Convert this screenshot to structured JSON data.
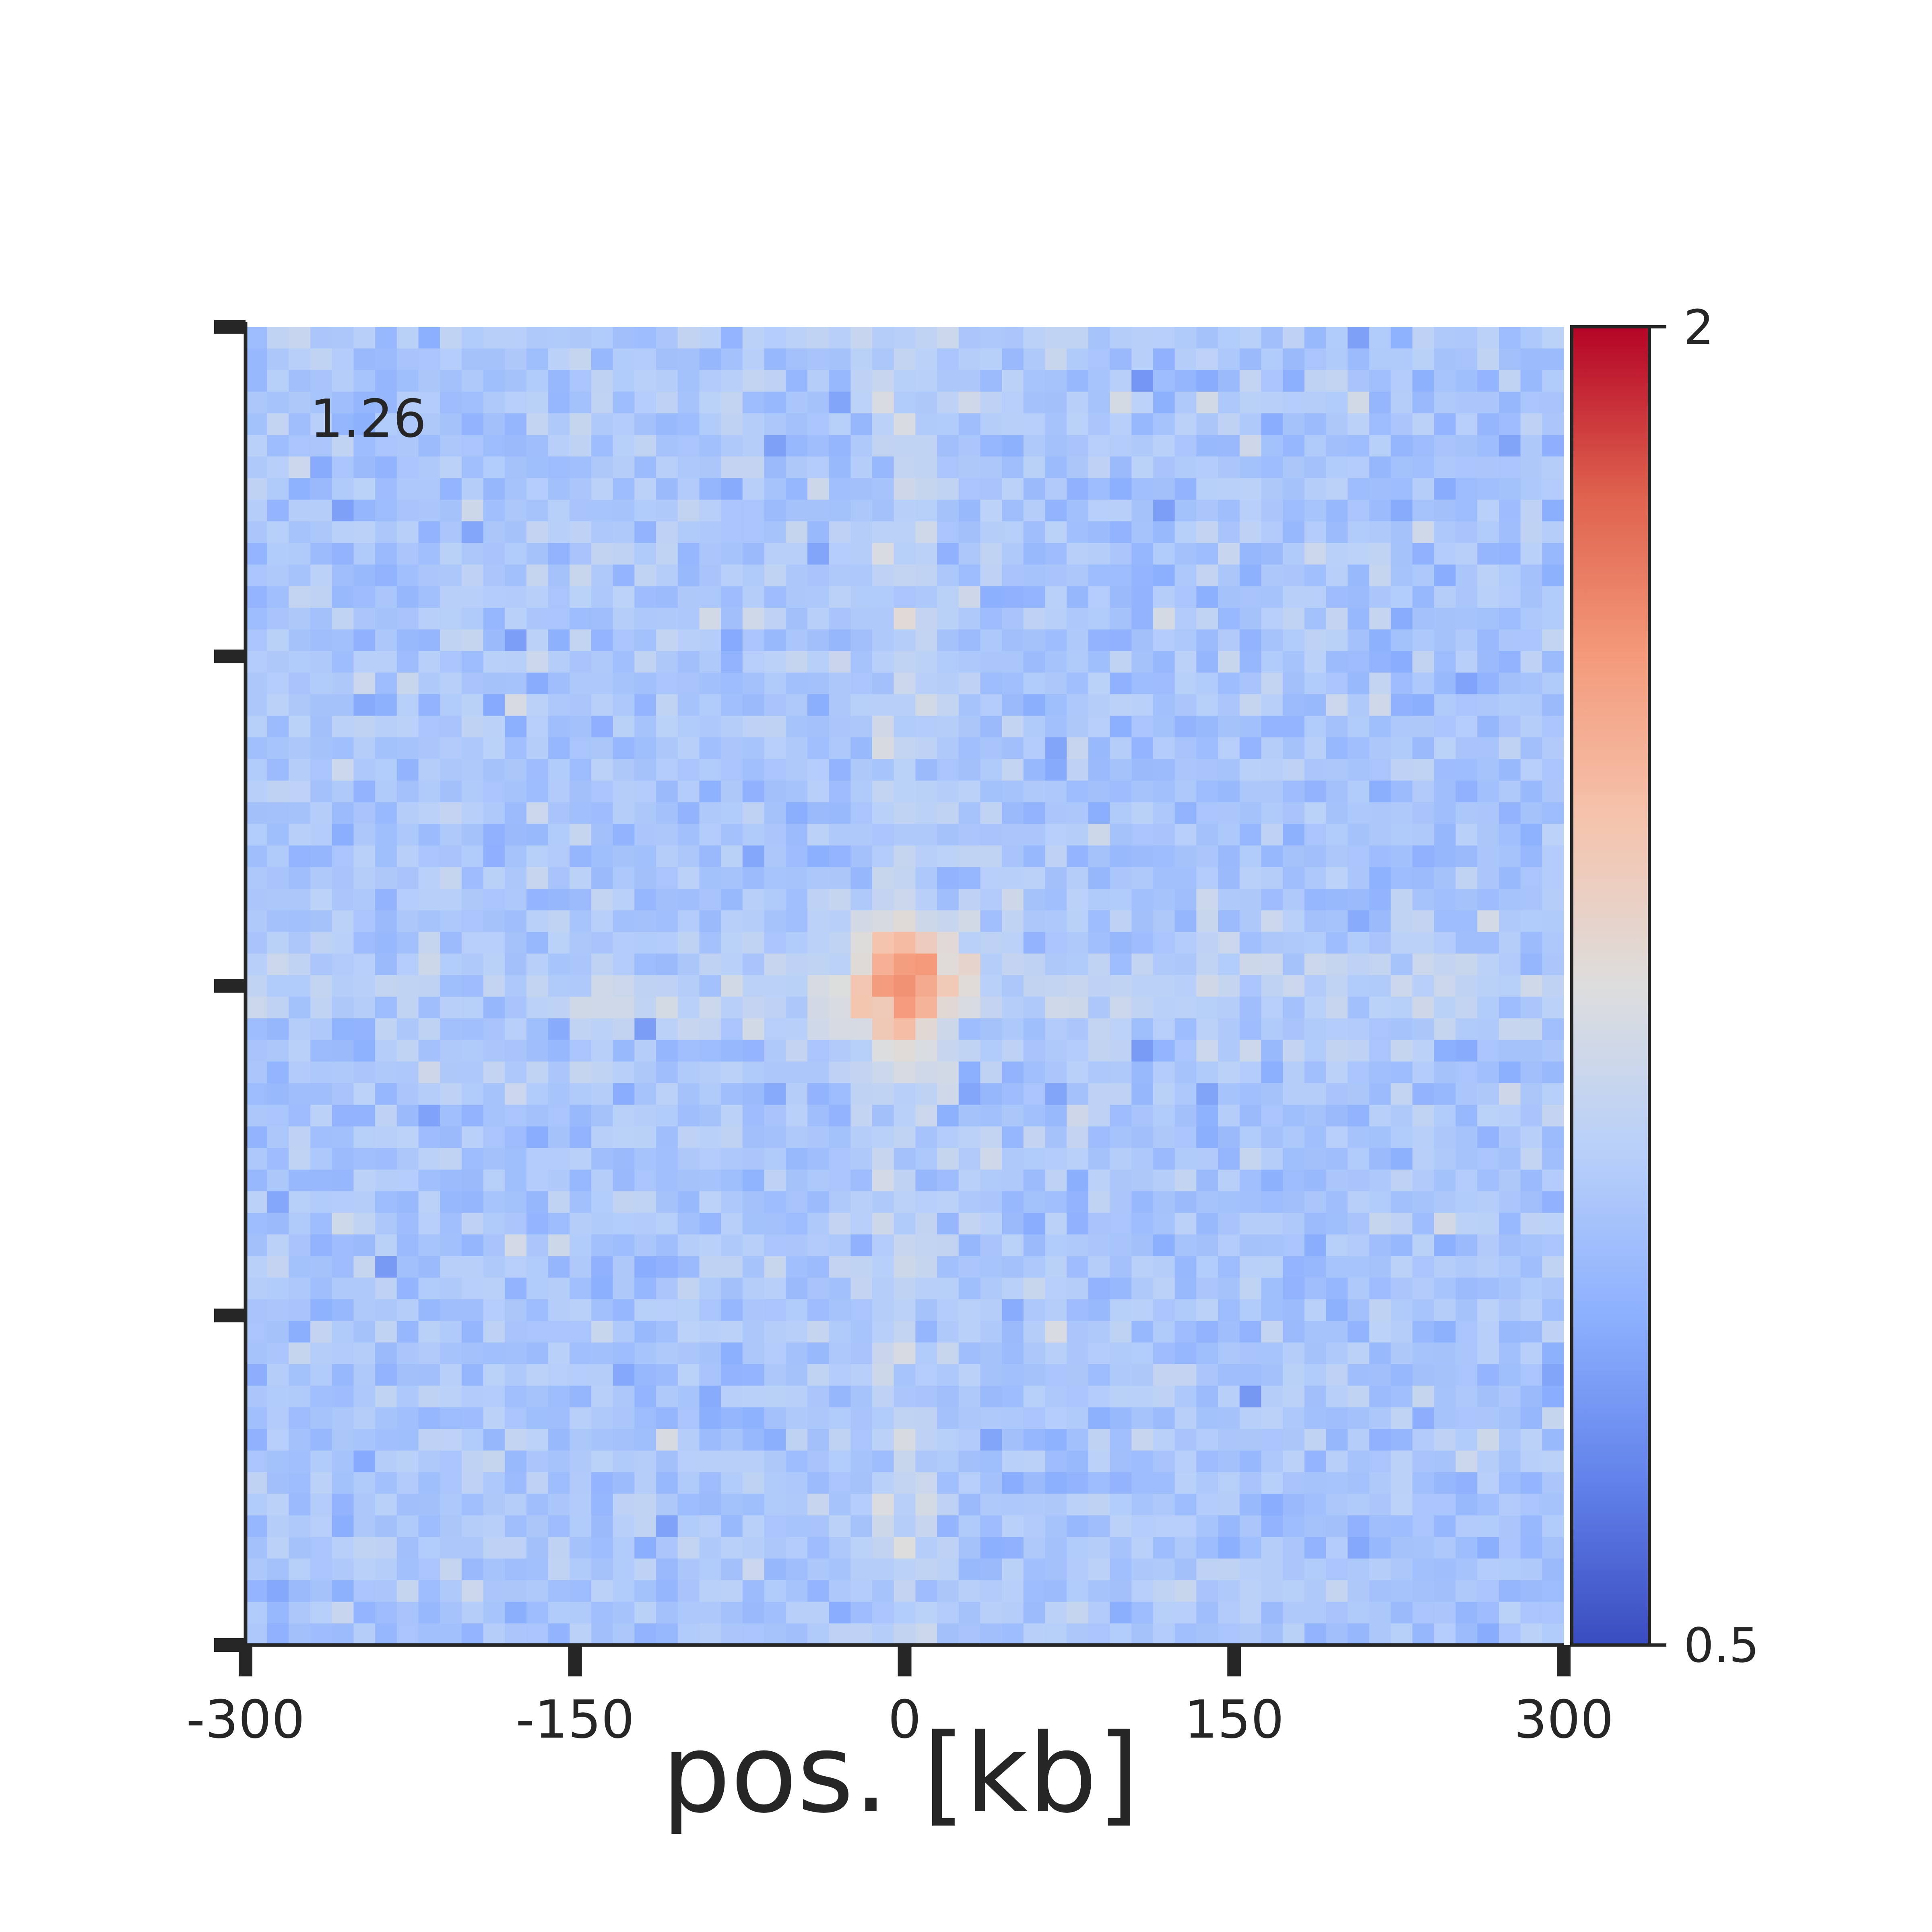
{
  "chart_data": {
    "type": "heatmap",
    "title": "",
    "xlabel": "pos. [kb]",
    "ylabel": "",
    "x_ticks": [
      "-300",
      "-150",
      "0",
      "150",
      "300"
    ],
    "x_tick_values": [
      -300,
      -150,
      0,
      150,
      300
    ],
    "xlim": [
      -300,
      300
    ],
    "ylim": [
      -300,
      300
    ],
    "y_tick_labels_shown": false,
    "annotation": "1.26",
    "colorbar": {
      "colormap": "coolwarm",
      "range": [
        0.5,
        2
      ],
      "tick_labels": [
        "2",
        "0.5"
      ]
    },
    "grid": false,
    "approx_bins": 61,
    "background_level": 1.0,
    "center_enrichment_peak": 1.5,
    "stripe_enrichment": 1.1,
    "noise_description": "per-bin random scatter around ~1.0"
  }
}
